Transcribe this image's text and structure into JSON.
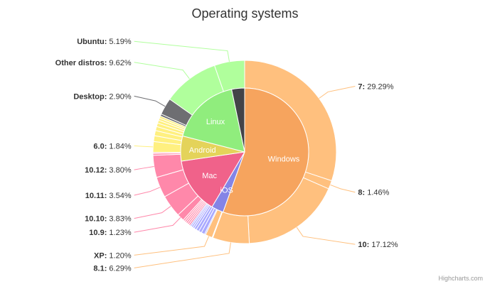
{
  "chart_data": {
    "type": "donut",
    "title": "Operating systems",
    "credit": "Highcharts.com",
    "inner_series": [
      {
        "name": "Windows",
        "value": 55.48,
        "color": "#f6a45e"
      },
      {
        "name": "iOS",
        "value": 3.04,
        "color": "#8484e6"
      },
      {
        "name": "Mac",
        "value": 14.18,
        "color": "#f0628a"
      },
      {
        "name": "Android",
        "value": 6.32,
        "color": "#e4d35a"
      },
      {
        "name": "Linux",
        "value": 17.71,
        "color": "#90ed7d"
      },
      {
        "name": "",
        "value": 3.27,
        "color": "#434348"
      }
    ],
    "outer_series": [
      {
        "name": "7",
        "value": 29.29,
        "color": "#ffc07e",
        "label_shown": true
      },
      {
        "name": "8",
        "value": 1.46,
        "color": "#ffc07e",
        "label_shown": true
      },
      {
        "name": "10",
        "value": 17.12,
        "color": "#ffc07e",
        "label_shown": true
      },
      {
        "name": "8.1",
        "value": 6.29,
        "color": "#ffc07e",
        "label_shown": true
      },
      {
        "name": "",
        "value": 0.12,
        "color": "#ffc07e",
        "label_shown": false
      },
      {
        "name": "XP",
        "value": 1.2,
        "color": "#ffc07e",
        "label_shown": true
      },
      {
        "name": "",
        "value": 0.2,
        "color": "#aaaaff",
        "label_shown": false
      },
      {
        "name": "",
        "value": 0.6,
        "color": "#aaaaff",
        "label_shown": false
      },
      {
        "name": "",
        "value": 0.5,
        "color": "#aaaaff",
        "label_shown": false
      },
      {
        "name": "",
        "value": 0.5,
        "color": "#aaaaff",
        "label_shown": false
      },
      {
        "name": "",
        "value": 0.4,
        "color": "#aaaaff",
        "label_shown": false
      },
      {
        "name": "",
        "value": 0.3,
        "color": "#aaaaff",
        "label_shown": false
      },
      {
        "name": "",
        "value": 0.3,
        "color": "#aaaaff",
        "label_shown": false
      },
      {
        "name": "",
        "value": 0.24,
        "color": "#aaaaff",
        "label_shown": false
      },
      {
        "name": "",
        "value": 0.3,
        "color": "#ff88aa",
        "label_shown": false
      },
      {
        "name": "",
        "value": 0.3,
        "color": "#ff88aa",
        "label_shown": false
      },
      {
        "name": "",
        "value": 0.3,
        "color": "#ff88aa",
        "label_shown": false
      },
      {
        "name": "",
        "value": 0.3,
        "color": "#ff88aa",
        "label_shown": false
      },
      {
        "name": "",
        "value": 0.3,
        "color": "#ff88aa",
        "label_shown": false
      },
      {
        "name": "10.9",
        "value": 1.23,
        "color": "#ff88aa",
        "label_shown": true
      },
      {
        "name": "10.10",
        "value": 3.83,
        "color": "#ff88aa",
        "label_shown": true
      },
      {
        "name": "10.11",
        "value": 3.54,
        "color": "#ff88aa",
        "label_shown": true
      },
      {
        "name": "10.12",
        "value": 3.8,
        "color": "#ff88aa",
        "label_shown": true
      },
      {
        "name": "",
        "value": 0.3,
        "color": "#ff88aa",
        "label_shown": false
      },
      {
        "name": "",
        "value": 0.2,
        "color": "#ff88aa",
        "label_shown": false
      },
      {
        "name": "6.0",
        "value": 1.84,
        "color": "#fff080",
        "label_shown": true
      },
      {
        "name": "",
        "value": 1.0,
        "color": "#fff080",
        "label_shown": false
      },
      {
        "name": "",
        "value": 0.9,
        "color": "#fff080",
        "label_shown": false
      },
      {
        "name": "",
        "value": 0.7,
        "color": "#fff080",
        "label_shown": false
      },
      {
        "name": "",
        "value": 0.6,
        "color": "#fff080",
        "label_shown": false
      },
      {
        "name": "",
        "value": 0.5,
        "color": "#fff080",
        "label_shown": false
      },
      {
        "name": "",
        "value": 0.4,
        "color": "#fff080",
        "label_shown": false
      },
      {
        "name": "",
        "value": 0.38,
        "color": "#fff080",
        "label_shown": false
      },
      {
        "name": "",
        "value": 0.37,
        "color": "#6e6e72",
        "label_shown": false
      },
      {
        "name": "Desktop",
        "value": 2.9,
        "color": "#6e6e72",
        "label_shown": true
      },
      {
        "name": "Other distros",
        "value": 9.62,
        "color": "#b0ff9c",
        "label_shown": true
      },
      {
        "name": "Ubuntu",
        "value": 5.19,
        "color": "#b0ff9c",
        "label_shown": true
      }
    ],
    "value_format": "{value}%"
  }
}
